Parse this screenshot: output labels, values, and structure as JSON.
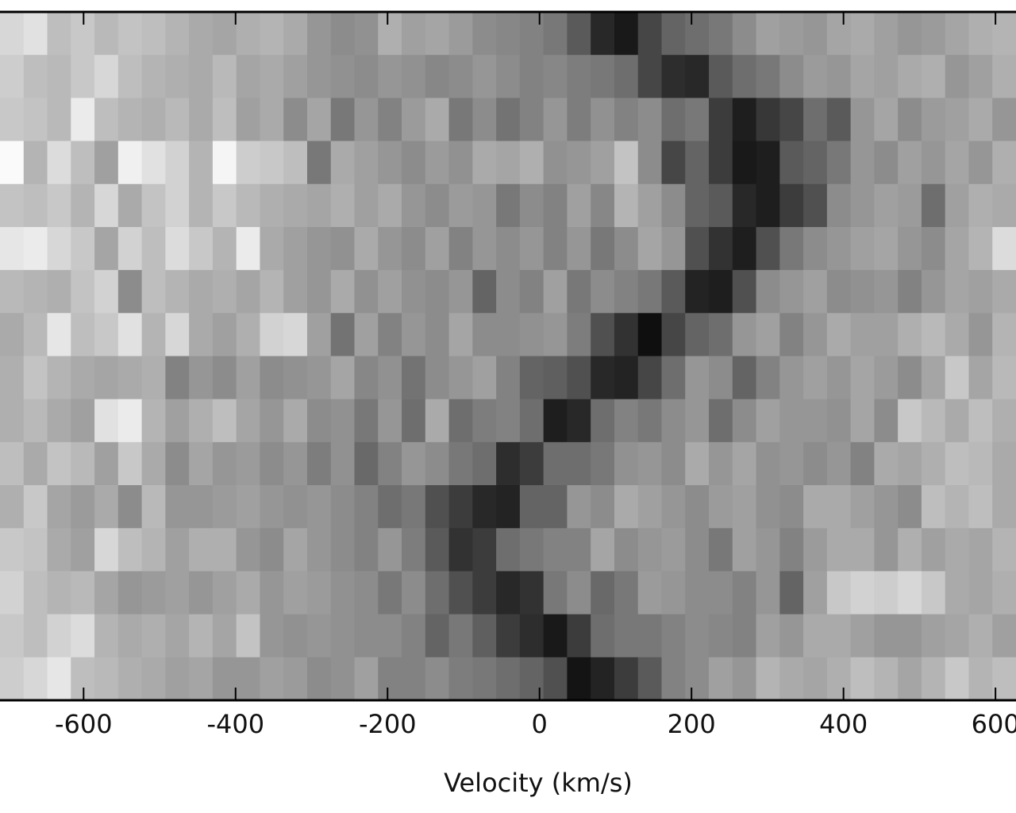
{
  "chart_data": {
    "type": "heatmap",
    "colormap": "gray",
    "x_label": "Velocity (km/s)",
    "xlim": [
      -710,
      627
    ],
    "xticks": [
      -600,
      -400,
      -200,
      0,
      200,
      400,
      600
    ],
    "z": [
      [
        215,
        225,
        190,
        200,
        185,
        195,
        190,
        180,
        170,
        165,
        175,
        180,
        170,
        150,
        140,
        145,
        175,
        160,
        165,
        155,
        140,
        135,
        130,
        120,
        90,
        40,
        25,
        70,
        100,
        110,
        120,
        140,
        160,
        155,
        150,
        165,
        170,
        160,
        150,
        155,
        165,
        175,
        180
      ],
      [
        205,
        190,
        185,
        200,
        215,
        190,
        180,
        175,
        170,
        185,
        165,
        170,
        160,
        150,
        145,
        140,
        150,
        145,
        135,
        140,
        150,
        140,
        130,
        135,
        125,
        120,
        110,
        70,
        45,
        40,
        90,
        110,
        120,
        140,
        155,
        150,
        165,
        160,
        170,
        175,
        150,
        160,
        175
      ],
      [
        200,
        195,
        185,
        235,
        190,
        180,
        175,
        185,
        170,
        190,
        160,
        170,
        140,
        165,
        120,
        150,
        130,
        155,
        170,
        120,
        140,
        115,
        130,
        150,
        125,
        145,
        130,
        140,
        110,
        120,
        60,
        30,
        55,
        70,
        110,
        90,
        150,
        165,
        140,
        155,
        160,
        170,
        150
      ],
      [
        250,
        180,
        220,
        190,
        160,
        240,
        225,
        210,
        180,
        245,
        205,
        200,
        190,
        120,
        170,
        160,
        150,
        140,
        155,
        145,
        170,
        165,
        175,
        145,
        150,
        160,
        195,
        140,
        70,
        100,
        60,
        25,
        30,
        90,
        100,
        120,
        150,
        140,
        160,
        150,
        165,
        150,
        175
      ],
      [
        195,
        190,
        200,
        180,
        215,
        170,
        195,
        210,
        180,
        200,
        185,
        175,
        170,
        165,
        175,
        160,
        170,
        150,
        140,
        155,
        150,
        120,
        140,
        130,
        160,
        135,
        180,
        160,
        140,
        100,
        90,
        40,
        30,
        60,
        80,
        140,
        150,
        160,
        155,
        110,
        160,
        175,
        170
      ],
      [
        230,
        235,
        215,
        200,
        165,
        210,
        190,
        220,
        200,
        180,
        235,
        170,
        160,
        150,
        145,
        170,
        150,
        140,
        160,
        130,
        150,
        140,
        150,
        130,
        150,
        120,
        140,
        165,
        150,
        80,
        50,
        30,
        80,
        120,
        140,
        150,
        160,
        165,
        150,
        140,
        165,
        180,
        220
      ],
      [
        185,
        180,
        175,
        195,
        210,
        140,
        190,
        180,
        170,
        175,
        165,
        180,
        160,
        150,
        170,
        145,
        160,
        145,
        140,
        150,
        100,
        140,
        130,
        160,
        120,
        140,
        130,
        120,
        90,
        35,
        30,
        80,
        140,
        150,
        160,
        140,
        145,
        150,
        130,
        150,
        165,
        160,
        170
      ],
      [
        170,
        185,
        230,
        190,
        200,
        225,
        180,
        215,
        170,
        160,
        175,
        210,
        215,
        160,
        115,
        160,
        130,
        150,
        140,
        165,
        140,
        140,
        145,
        150,
        125,
        80,
        50,
        15,
        70,
        100,
        110,
        150,
        160,
        130,
        150,
        170,
        160,
        160,
        175,
        185,
        170,
        150,
        180
      ],
      [
        175,
        195,
        180,
        170,
        165,
        170,
        175,
        130,
        150,
        140,
        160,
        140,
        145,
        150,
        165,
        135,
        145,
        115,
        140,
        150,
        160,
        130,
        100,
        95,
        80,
        40,
        35,
        70,
        110,
        150,
        140,
        100,
        130,
        150,
        160,
        150,
        165,
        155,
        140,
        165,
        200,
        165,
        185
      ],
      [
        175,
        185,
        170,
        160,
        225,
        235,
        180,
        160,
        175,
        190,
        165,
        150,
        170,
        140,
        145,
        120,
        150,
        110,
        170,
        110,
        125,
        130,
        110,
        30,
        40,
        110,
        130,
        120,
        140,
        150,
        110,
        140,
        160,
        150,
        150,
        145,
        165,
        140,
        200,
        185,
        170,
        190,
        175
      ],
      [
        190,
        170,
        195,
        185,
        160,
        200,
        170,
        140,
        165,
        150,
        155,
        140,
        150,
        125,
        145,
        105,
        130,
        150,
        140,
        120,
        110,
        45,
        60,
        110,
        110,
        120,
        145,
        150,
        140,
        170,
        150,
        165,
        145,
        150,
        140,
        150,
        130,
        170,
        165,
        175,
        190,
        185,
        170
      ],
      [
        175,
        200,
        165,
        155,
        170,
        140,
        185,
        150,
        150,
        155,
        160,
        150,
        145,
        150,
        140,
        130,
        110,
        120,
        80,
        60,
        40,
        35,
        100,
        100,
        150,
        140,
        170,
        160,
        150,
        140,
        155,
        160,
        145,
        140,
        170,
        170,
        160,
        150,
        140,
        190,
        180,
        190,
        170
      ],
      [
        200,
        195,
        170,
        160,
        215,
        190,
        180,
        160,
        175,
        175,
        150,
        140,
        165,
        150,
        140,
        130,
        150,
        125,
        90,
        50,
        60,
        110,
        120,
        130,
        130,
        165,
        140,
        150,
        155,
        140,
        120,
        160,
        150,
        130,
        155,
        170,
        170,
        150,
        175,
        160,
        170,
        165,
        180
      ],
      [
        210,
        190,
        180,
        185,
        165,
        150,
        155,
        160,
        150,
        160,
        170,
        150,
        160,
        155,
        145,
        140,
        120,
        140,
        110,
        80,
        60,
        40,
        50,
        120,
        140,
        105,
        120,
        155,
        150,
        140,
        140,
        130,
        150,
        100,
        160,
        200,
        210,
        205,
        215,
        200,
        170,
        165,
        175
      ],
      [
        200,
        190,
        210,
        220,
        180,
        170,
        175,
        165,
        180,
        165,
        195,
        150,
        145,
        150,
        145,
        140,
        140,
        130,
        100,
        120,
        95,
        60,
        45,
        25,
        60,
        110,
        120,
        120,
        130,
        140,
        135,
        130,
        160,
        150,
        170,
        170,
        160,
        150,
        150,
        160,
        165,
        175,
        160
      ],
      [
        205,
        215,
        230,
        190,
        185,
        175,
        170,
        160,
        165,
        150,
        150,
        160,
        155,
        140,
        145,
        160,
        130,
        130,
        140,
        125,
        120,
        110,
        100,
        80,
        20,
        35,
        60,
        90,
        130,
        140,
        160,
        150,
        180,
        170,
        165,
        175,
        190,
        180,
        165,
        180,
        200,
        180,
        190
      ]
    ]
  }
}
